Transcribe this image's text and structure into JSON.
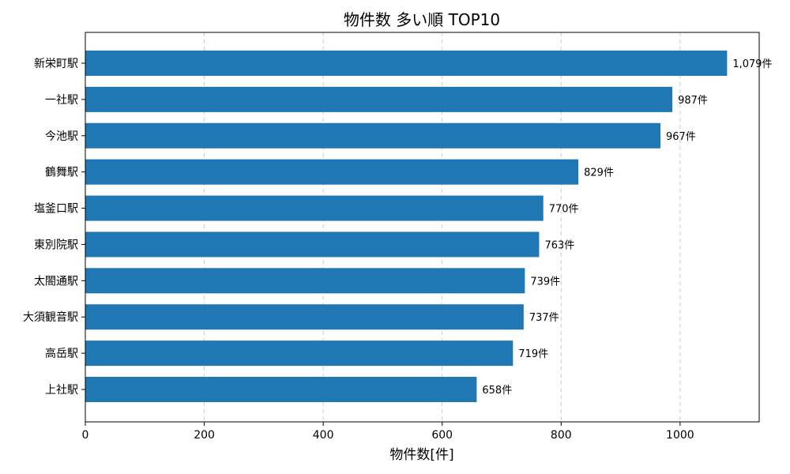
{
  "chart_data": {
    "type": "bar",
    "orientation": "horizontal",
    "title": "物件数 多い順 TOP10",
    "xlabel": "物件数[件]",
    "ylabel": "",
    "categories": [
      "新栄町駅",
      "一社駅",
      "今池駅",
      "鶴舞駅",
      "塩釜口駅",
      "東別院駅",
      "太閤通駅",
      "大須観音駅",
      "高岳駅",
      "上社駅"
    ],
    "values": [
      1079,
      987,
      967,
      829,
      770,
      763,
      739,
      737,
      719,
      658
    ],
    "data_labels": [
      "1,079件",
      "987件",
      "967件",
      "829件",
      "770件",
      "763件",
      "739件",
      "737件",
      "719件",
      "658件"
    ],
    "xlim": [
      0,
      1133
    ],
    "xticks": [
      0,
      200,
      400,
      600,
      800,
      1000
    ],
    "grid": "x-dashed",
    "bar_color": "#1f77b4"
  }
}
